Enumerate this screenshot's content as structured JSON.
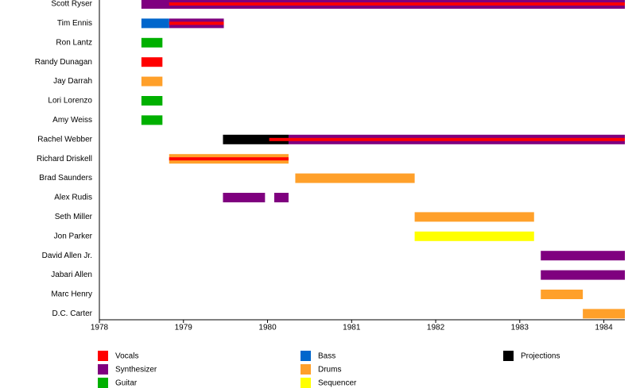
{
  "chart_data": {
    "type": "timeline",
    "categories": [
      "Scott Ryser",
      "Tim Ennis",
      "Ron Lantz",
      "Randy Dunagan",
      "Jay Darrah",
      "Lori Lorenzo",
      "Amy Weiss",
      "Rachel Webber",
      "Richard Driskell",
      "Brad Saunders",
      "Alex Rudis",
      "Seth Miller",
      "Jon Parker",
      "David Allen Jr.",
      "Jabari Allen",
      "Marc Henry",
      "D.C. Carter"
    ],
    "series": [
      {
        "name": "Vocals",
        "color": "#ff0000",
        "values": [
          [
            [
              1978.83,
              1984.25
            ]
          ],
          [
            [
              1978.83,
              1979.48
            ]
          ],
          null,
          [
            [
              1978.5,
              1978.75
            ]
          ],
          null,
          null,
          null,
          [
            [
              1980.02,
              1984.25
            ]
          ],
          [
            [
              1978.83,
              1980.25
            ]
          ],
          null,
          null,
          null,
          null,
          null,
          null,
          null,
          null
        ]
      },
      {
        "name": "Synthesizer",
        "color": "#7f007f",
        "values": [
          [
            [
              1978.5,
              1984.25
            ]
          ],
          [
            [
              1978.83,
              1979.48
            ]
          ],
          null,
          null,
          null,
          null,
          null,
          [
            [
              1980.25,
              1984.25
            ]
          ],
          null,
          null,
          [
            [
              1979.47,
              1979.97
            ],
            [
              1980.08,
              1980.25
            ]
          ],
          null,
          null,
          [
            [
              1983.25,
              1984.25
            ]
          ],
          [
            [
              1983.25,
              1984.25
            ]
          ],
          null,
          null
        ]
      },
      {
        "name": "Guitar",
        "color": "#00b000",
        "values": [
          null,
          null,
          [
            [
              1978.5,
              1978.75
            ]
          ],
          null,
          null,
          [
            [
              1978.5,
              1978.75
            ]
          ],
          [
            [
              1978.5,
              1978.75
            ]
          ],
          null,
          null,
          null,
          null,
          null,
          null,
          null,
          null,
          null,
          null
        ]
      },
      {
        "name": "Bass",
        "color": "#0066cc",
        "values": [
          null,
          [
            [
              1978.5,
              1978.83
            ]
          ],
          null,
          null,
          null,
          null,
          null,
          null,
          null,
          null,
          null,
          null,
          null,
          null,
          null,
          null,
          null
        ]
      },
      {
        "name": "Drums",
        "color": "#ffa02a",
        "values": [
          null,
          null,
          null,
          null,
          [
            [
              1978.5,
              1978.75
            ]
          ],
          null,
          null,
          null,
          [
            [
              1978.83,
              1980.25
            ]
          ],
          [
            [
              1980.33,
              1981.75
            ]
          ],
          null,
          [
            [
              1981.75,
              1983.17
            ]
          ],
          null,
          null,
          null,
          [
            [
              1983.25,
              1983.75
            ]
          ],
          [
            [
              1983.75,
              1984.25
            ]
          ]
        ]
      },
      {
        "name": "Sequencer",
        "color": "#ffff00",
        "values": [
          null,
          null,
          null,
          null,
          null,
          null,
          null,
          null,
          null,
          null,
          null,
          null,
          [
            [
              1981.75,
              1983.17
            ]
          ],
          null,
          null,
          null,
          null
        ]
      },
      {
        "name": "Projections",
        "color": "#000000",
        "values": [
          null,
          null,
          null,
          null,
          null,
          null,
          null,
          [
            [
              1979.47,
              1980.25
            ]
          ],
          null,
          null,
          null,
          null,
          null,
          null,
          null,
          null,
          null
        ]
      }
    ],
    "xlim": [
      1978,
      1984.25
    ],
    "xticks": [
      1978,
      1979,
      1980,
      1981,
      1982,
      1983,
      1984
    ]
  }
}
